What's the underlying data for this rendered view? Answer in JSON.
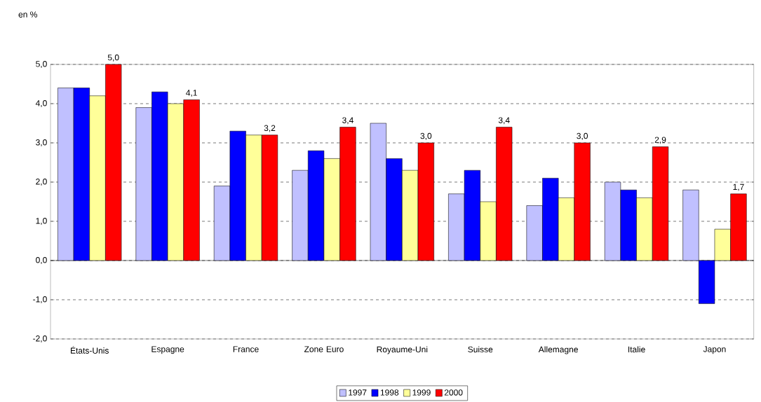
{
  "chart_data": {
    "type": "bar",
    "annotations": [
      "en %"
    ],
    "categories": [
      "États-Unis",
      "Espagne",
      "France",
      "Zone Euro",
      "Royaume-Uni",
      "Suisse",
      "Allemagne",
      "Italie",
      "Japon"
    ],
    "series": [
      {
        "name": "1997",
        "color": "#c0c0ff",
        "values": [
          4.4,
          3.9,
          1.9,
          2.3,
          3.5,
          1.7,
          1.4,
          2.0,
          1.8
        ]
      },
      {
        "name": "1998",
        "color": "#0000ff",
        "values": [
          4.4,
          4.3,
          3.3,
          2.8,
          2.6,
          2.3,
          2.1,
          1.8,
          -1.1
        ]
      },
      {
        "name": "1999",
        "color": "#ffff99",
        "values": [
          4.2,
          4.0,
          3.2,
          2.6,
          2.3,
          1.5,
          1.6,
          1.6,
          0.8
        ]
      },
      {
        "name": "2000",
        "color": "#ff0000",
        "values": [
          5.0,
          4.1,
          3.2,
          3.4,
          3.0,
          3.4,
          3.0,
          2.9,
          1.7
        ],
        "value_labels": [
          "5,0",
          "4,1",
          "3,2",
          "3,4",
          "3,0",
          "3,4",
          "3,0",
          "2,9",
          "1,7"
        ]
      }
    ],
    "ylim": [
      -2,
      5
    ],
    "yticks": [
      {
        "value": -2,
        "label": "-2,0"
      },
      {
        "value": -1,
        "label": "-1,0"
      },
      {
        "value": 0,
        "label": "0,0"
      },
      {
        "value": 1,
        "label": "1,0"
      },
      {
        "value": 2,
        "label": "2,0"
      },
      {
        "value": 3,
        "label": "3,0"
      },
      {
        "value": 4,
        "label": "4,0"
      },
      {
        "value": 5,
        "label": "5,0"
      }
    ],
    "grid": "y",
    "legend": "bottom"
  }
}
